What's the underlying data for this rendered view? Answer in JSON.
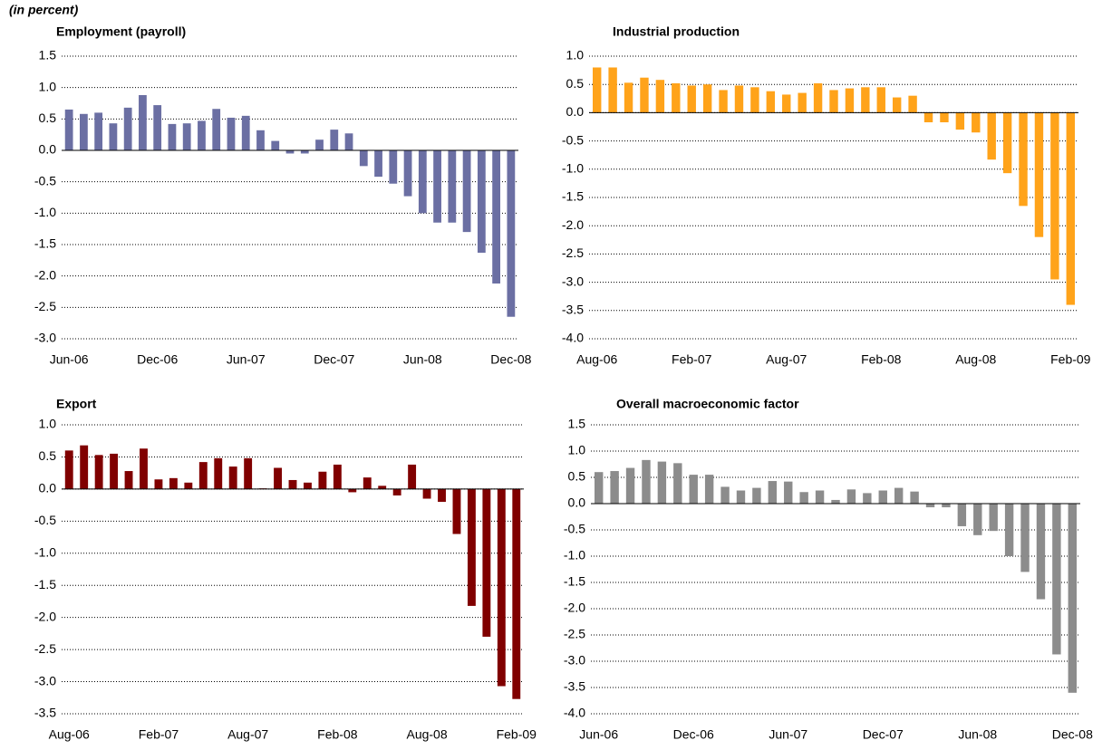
{
  "header": "(in percent)",
  "chart_data": [
    {
      "type": "bar",
      "title": "Employment (payroll)",
      "color": "#6b6fa3",
      "grid": true,
      "categories": [
        "Jun-06",
        null,
        null,
        null,
        null,
        null,
        "Dec-06",
        null,
        null,
        null,
        null,
        null,
        "Jun-07",
        null,
        null,
        null,
        null,
        null,
        "Dec-07",
        null,
        null,
        null,
        null,
        null,
        "Jun-08",
        null,
        null,
        null,
        null,
        null,
        "Dec-08"
      ],
      "values": [
        0.65,
        0.58,
        0.6,
        0.43,
        0.68,
        0.88,
        0.72,
        0.42,
        0.43,
        0.47,
        0.66,
        0.52,
        0.55,
        0.32,
        0.15,
        -0.05,
        -0.05,
        0.17,
        0.33,
        0.27,
        -0.25,
        -0.42,
        -0.53,
        -0.73,
        -1.0,
        -1.15,
        -1.15,
        -1.3,
        -1.63,
        -2.12,
        -2.65
      ],
      "ylim": [
        -3,
        1.5
      ],
      "yticks": [
        -2.5,
        -1.5,
        -0.5,
        0.5,
        1.5,
        {
          "value": -3,
          "label": "-3.0"
        },
        {
          "value": -2,
          "label": "-2.0"
        },
        {
          "value": -1,
          "label": "-1.0"
        },
        {
          "value": 0,
          "label": "0.0"
        },
        {
          "value": 1,
          "label": "1.0"
        }
      ]
    },
    {
      "type": "bar",
      "title": "Industrial production",
      "color": "#ffa31a",
      "grid": true,
      "categories": [
        "Aug-06",
        null,
        null,
        null,
        null,
        null,
        "Feb-07",
        null,
        null,
        null,
        null,
        null,
        "Aug-07",
        null,
        null,
        null,
        null,
        null,
        "Feb-08",
        null,
        null,
        null,
        null,
        null,
        "Aug-08",
        null,
        null,
        null,
        null,
        null,
        "Feb-09"
      ],
      "values": [
        0.8,
        0.8,
        0.53,
        0.62,
        0.58,
        0.52,
        0.48,
        0.5,
        0.4,
        0.48,
        0.45,
        0.38,
        0.32,
        0.35,
        0.52,
        0.4,
        0.43,
        0.45,
        0.45,
        0.27,
        0.3,
        -0.17,
        -0.17,
        -0.3,
        -0.35,
        -0.83,
        -1.07,
        -1.65,
        -2.2,
        -2.95,
        -3.4
      ],
      "ylim": [
        -4,
        1
      ],
      "yticks": [
        -3.5,
        -2.5,
        -1.5,
        -0.5,
        0.5,
        {
          "value": -4,
          "label": "-4.0"
        },
        {
          "value": -3,
          "label": "-3.0"
        },
        {
          "value": -2,
          "label": "-2.0"
        },
        {
          "value": -1,
          "label": "-1.0"
        },
        {
          "value": 0,
          "label": "0.0"
        },
        {
          "value": 1,
          "label": "1.0"
        }
      ]
    },
    {
      "type": "bar",
      "title": "Export",
      "color": "#800000",
      "grid": true,
      "categories": [
        "Aug-06",
        null,
        null,
        null,
        null,
        null,
        "Feb-07",
        null,
        null,
        null,
        null,
        null,
        "Aug-07",
        null,
        null,
        null,
        null,
        null,
        "Feb-08",
        null,
        null,
        null,
        null,
        null,
        "Aug-08",
        null,
        null,
        null,
        null,
        null,
        "Feb-09"
      ],
      "values": [
        0.6,
        0.68,
        0.53,
        0.55,
        0.28,
        0.63,
        0.15,
        0.17,
        0.1,
        0.42,
        0.48,
        0.35,
        0.48,
        0.01,
        0.33,
        0.14,
        0.1,
        0.27,
        0.38,
        -0.05,
        0.18,
        0.05,
        -0.1,
        0.38,
        -0.15,
        -0.2,
        -0.7,
        -1.82,
        -2.3,
        -3.07,
        -3.27
      ],
      "ylim": [
        -3.5,
        1
      ],
      "yticks": [
        -3.5,
        -2.5,
        -1.5,
        -0.5,
        0.5,
        {
          "value": -3,
          "label": "-3.0"
        },
        {
          "value": -2,
          "label": "-2.0"
        },
        {
          "value": -1,
          "label": "-1.0"
        },
        {
          "value": 0,
          "label": "0.0"
        },
        {
          "value": 1,
          "label": "1.0"
        }
      ]
    },
    {
      "type": "bar",
      "title": "Overall macroeconomic factor",
      "color": "#8c8c8c",
      "grid": true,
      "categories": [
        "Jun-06",
        null,
        null,
        null,
        null,
        null,
        "Dec-06",
        null,
        null,
        null,
        null,
        null,
        "Jun-07",
        null,
        null,
        null,
        null,
        null,
        "Dec-07",
        null,
        null,
        null,
        null,
        null,
        "Jun-08",
        null,
        null,
        null,
        null,
        null,
        "Dec-08"
      ],
      "values": [
        0.6,
        0.62,
        0.68,
        0.83,
        0.8,
        0.77,
        0.55,
        0.55,
        0.32,
        0.25,
        0.3,
        0.43,
        0.42,
        0.22,
        0.25,
        0.07,
        0.27,
        0.2,
        0.25,
        0.3,
        0.23,
        -0.07,
        -0.07,
        -0.43,
        -0.6,
        -0.52,
        -1.0,
        -1.3,
        -1.82,
        -2.87,
        -3.6
      ],
      "ylim": [
        -4,
        1.5
      ],
      "yticks": [
        -3.5,
        -2.5,
        -1.5,
        -0.5,
        0.5,
        1.5,
        {
          "value": -4,
          "label": "-4.0"
        },
        {
          "value": -3,
          "label": "-3.0"
        },
        {
          "value": -2,
          "label": "-2.0"
        },
        {
          "value": -1,
          "label": "-1.0"
        },
        {
          "value": 0,
          "label": "0.0"
        },
        {
          "value": 1,
          "label": "1.0"
        }
      ]
    }
  ]
}
